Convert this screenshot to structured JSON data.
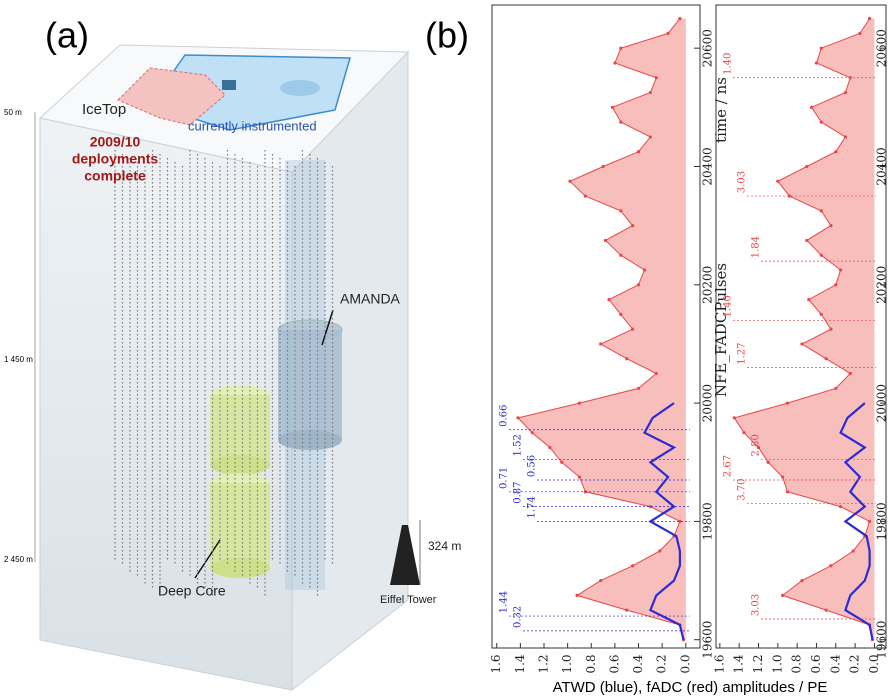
{
  "panel_a": {
    "label": "(a)",
    "icetop": "IceTop",
    "deployments": [
      "2009/10",
      "deployments",
      "complete"
    ],
    "instrumented": "currently instrumented",
    "amanda": "AMANDA",
    "deep_core": "Deep Core",
    "eiffel": "Eiffel Tower",
    "height": "324 m",
    "depths": [
      "50 m",
      "1 450 m",
      "2 450 m"
    ]
  },
  "panel_b": {
    "label": "(b)",
    "x_label": "ATWD (blue), fADC (red) amplitudes / PE"
  },
  "chart_data": [
    {
      "type": "line",
      "title": "NFE_FADCPulses",
      "x_label": "time / ns",
      "x": [
        19600,
        19625,
        19650,
        19675,
        19700,
        19725,
        19750,
        19775,
        19800,
        19825,
        19850,
        19875,
        19900,
        19925,
        19950,
        19975,
        20000,
        20025,
        20050,
        20075,
        20100,
        20125,
        20150,
        20175,
        20200,
        20225,
        20250,
        20275,
        20300,
        20325,
        20350,
        20375,
        20400,
        20425,
        20450,
        20475,
        20500,
        20525,
        20550,
        20575,
        20600,
        20625,
        20650
      ],
      "xlim": [
        19586,
        20673
      ],
      "xticks": [
        19600,
        19800,
        20000,
        20200,
        20400,
        20600
      ],
      "ylim": [
        -0.12,
        1.64
      ],
      "yticks": [
        1.6,
        1.4,
        1.2,
        {
          "value": 1,
          "label": "1.0"
        },
        0.8,
        0.6,
        0.4,
        0.2,
        {
          "value": 0,
          "label": "0.0"
        }
      ],
      "series": [
        {
          "color": "#e8474a",
          "fill": "#f7b3b0",
          "values": [
            0.02,
            0.05,
            0.5,
            0.92,
            0.72,
            0.45,
            0.22,
            0.1,
            0.05,
            0.3,
            0.85,
            0.9,
            1.05,
            1.15,
            1.3,
            1.42,
            0.9,
            0.4,
            0.25,
            0.5,
            0.72,
            0.45,
            0.55,
            0.65,
            0.4,
            0.35,
            0.55,
            0.68,
            0.45,
            0.55,
            0.85,
            0.98,
            0.7,
            0.4,
            0.3,
            0.55,
            0.62,
            0.3,
            0.25,
            0.6,
            0.55,
            0.15,
            0.05
          ]
        },
        {
          "color": "#2b2bd6",
          "values": [
            0.02,
            0.05,
            0.3,
            0.25,
            0.1,
            0.05,
            0.05,
            0.08,
            0.3,
            0.1,
            0.25,
            0.15,
            0.3,
            0.1,
            0.35,
            0.28,
            0.1,
            null,
            null,
            null,
            null,
            null,
            null,
            null,
            null,
            null,
            null,
            null,
            null,
            null,
            null,
            null,
            null,
            null,
            null,
            null,
            null,
            null,
            null,
            null,
            null,
            null,
            null
          ]
        }
      ],
      "annotations": [
        {
          "x": 19955,
          "text": "0.66",
          "color": "#2b2bd6"
        },
        {
          "x": 19905,
          "text": "1.52",
          "color": "#2b2bd6"
        },
        {
          "x": 19870,
          "text": "0.56",
          "color": "#2b2bd6"
        },
        {
          "x": 19850,
          "text": "0.71",
          "color": "#2b2bd6"
        },
        {
          "x": 19825,
          "text": "0.87",
          "color": "#2b2bd6"
        },
        {
          "x": 19800,
          "text": "1.74",
          "color": "#2b2bd6"
        },
        {
          "x": 19640,
          "text": "1.44",
          "color": "#2b2bd6"
        },
        {
          "x": 19615,
          "text": "0.32",
          "color": "#2b2bd6"
        }
      ]
    },
    {
      "type": "line",
      "x": [
        19600,
        19625,
        19650,
        19675,
        19700,
        19725,
        19750,
        19775,
        19800,
        19825,
        19850,
        19875,
        19900,
        19925,
        19950,
        19975,
        20000,
        20025,
        20050,
        20075,
        20100,
        20125,
        20150,
        20175,
        20200,
        20225,
        20250,
        20275,
        20300,
        20325,
        20350,
        20375,
        20400,
        20425,
        20450,
        20475,
        20500,
        20525,
        20550,
        20575,
        20600,
        20625,
        20650
      ],
      "xlim": [
        19586,
        20673
      ],
      "xticks": [
        19600,
        19800,
        20000,
        20200,
        20400,
        20600
      ],
      "ylim": [
        -0.12,
        1.64
      ],
      "yticks": [
        1.6,
        1.4,
        1.2,
        {
          "value": 1,
          "label": "1.0"
        },
        0.8,
        0.6,
        0.4,
        0.2,
        {
          "value": 0,
          "label": "0.0"
        }
      ],
      "series": [
        {
          "color": "#e8474a",
          "fill": "#f7b3b0",
          "values": [
            0.02,
            0.05,
            0.5,
            0.95,
            0.75,
            0.45,
            0.22,
            0.1,
            0.05,
            0.35,
            0.9,
            0.95,
            1.1,
            1.2,
            1.35,
            1.45,
            0.9,
            0.4,
            0.25,
            0.5,
            0.75,
            0.45,
            0.55,
            0.68,
            0.4,
            0.35,
            0.55,
            0.7,
            0.45,
            0.55,
            0.88,
            1.0,
            0.7,
            0.4,
            0.3,
            0.55,
            0.65,
            0.3,
            0.25,
            0.6,
            0.55,
            0.15,
            0.05
          ]
        },
        {
          "color": "#2b2bd6",
          "values": [
            0.02,
            0.05,
            0.3,
            0.25,
            0.1,
            0.05,
            0.05,
            0.08,
            0.3,
            0.1,
            0.25,
            0.15,
            0.3,
            0.1,
            0.35,
            0.28,
            0.1,
            null,
            null,
            null,
            null,
            null,
            null,
            null,
            null,
            null,
            null,
            null,
            null,
            null,
            null,
            null,
            null,
            null,
            null,
            null,
            null,
            null,
            null,
            null,
            null,
            null,
            null
          ]
        }
      ],
      "annotations": [
        {
          "x": 20550,
          "text": "1.40",
          "color": "#e8474a"
        },
        {
          "x": 20350,
          "text": "3.03",
          "color": "#e8474a"
        },
        {
          "x": 20240,
          "text": "1.84",
          "color": "#e8474a"
        },
        {
          "x": 20140,
          "text": "1.40",
          "color": "#e8474a"
        },
        {
          "x": 20060,
          "text": "1.27",
          "color": "#e8474a"
        },
        {
          "x": 19905,
          "text": "2.80",
          "color": "#e8474a"
        },
        {
          "x": 19870,
          "text": "2.67",
          "color": "#e8474a"
        },
        {
          "x": 19830,
          "text": "3.70",
          "color": "#e8474a"
        },
        {
          "x": 19635,
          "text": "3.03",
          "color": "#e8474a"
        }
      ]
    }
  ]
}
